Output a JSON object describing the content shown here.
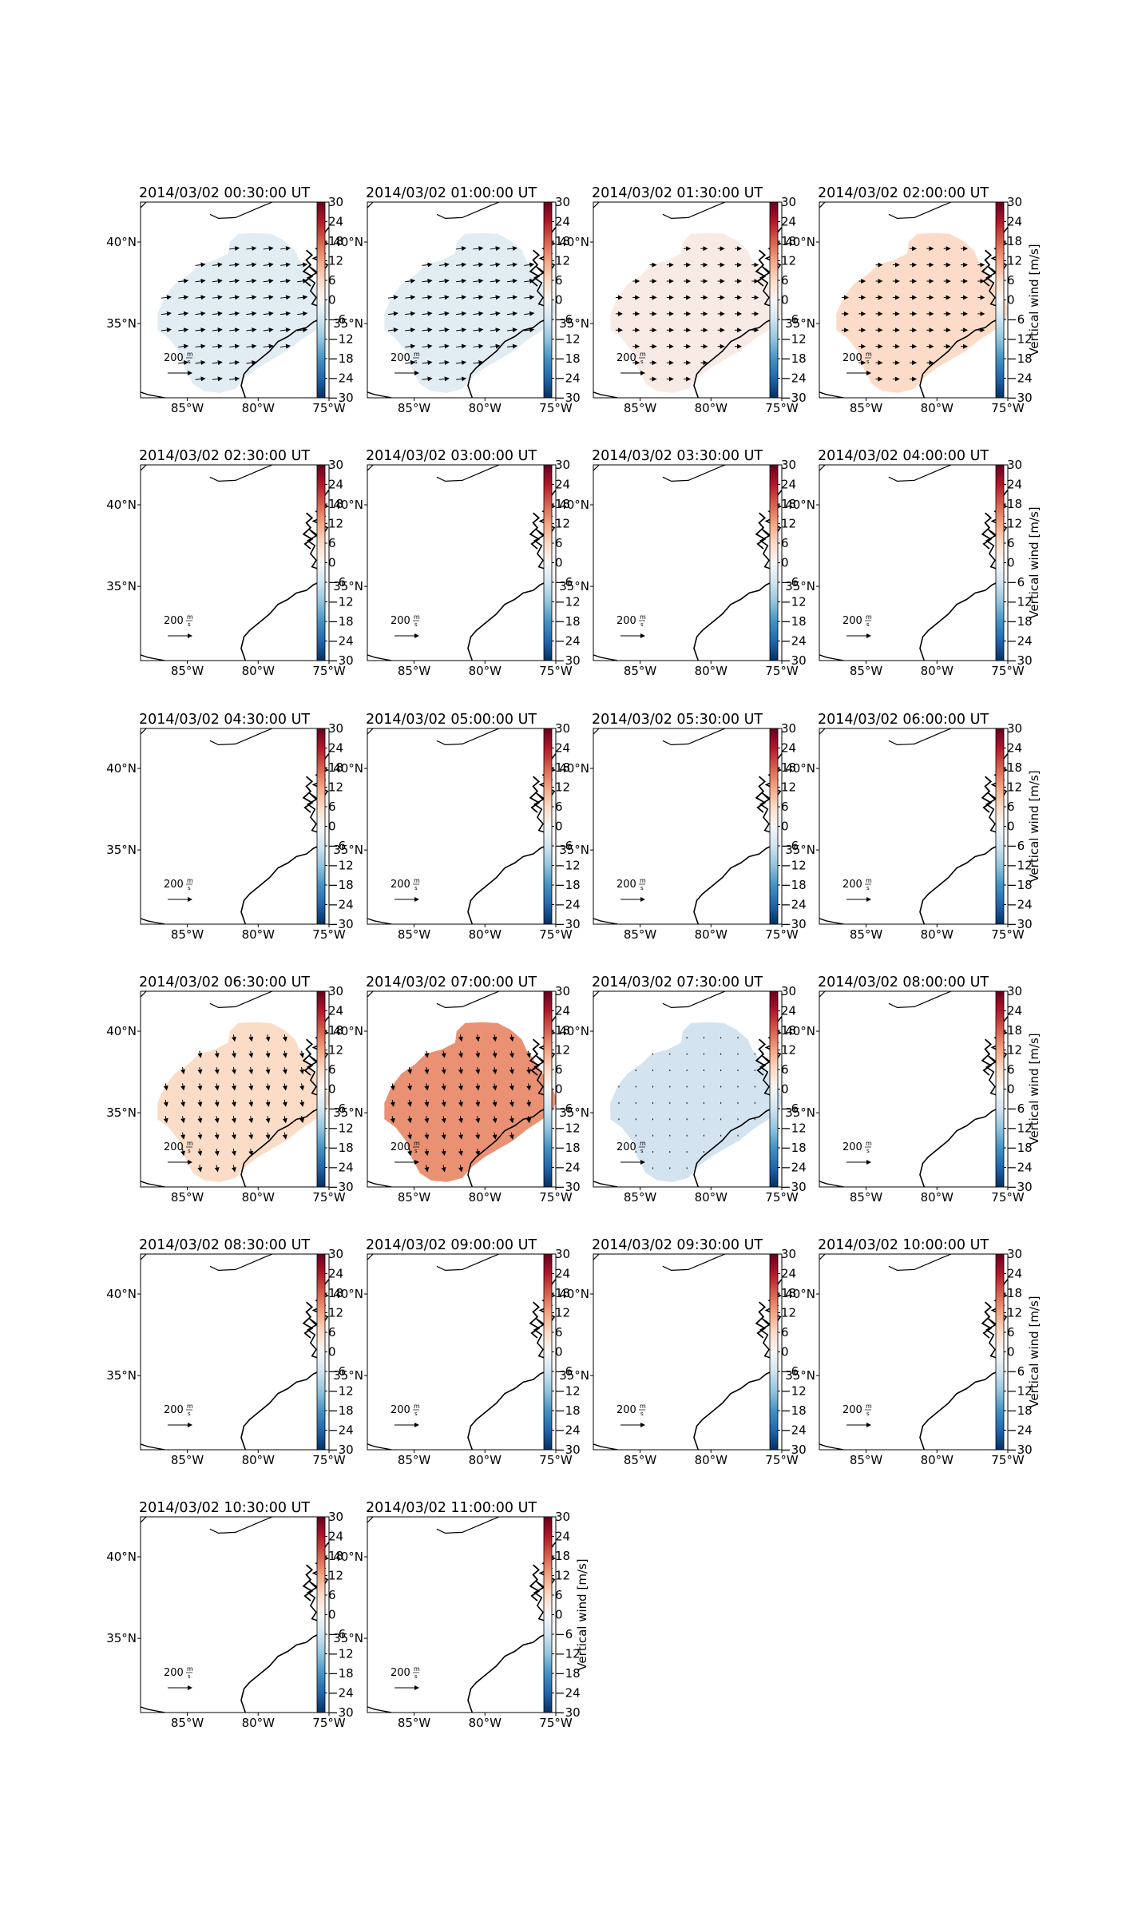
{
  "figure": {
    "colorbar_ticks": [
      "30",
      "24",
      "18",
      "12",
      "6",
      "0",
      "−6",
      "−12",
      "−18",
      "−24",
      "−30"
    ],
    "colorbar_label": "Vertical wind [m/s]",
    "lon_ticks": [
      "85°W",
      "80°W",
      "75°W"
    ],
    "lat_ticks": [
      "40°N",
      "35°N"
    ],
    "scale_label": "200",
    "scale_unit_num": "m",
    "scale_unit_den": "s",
    "cmap_stops": [
      "#053061",
      "#2166ac",
      "#4393c3",
      "#92c5de",
      "#d1e5f0",
      "#f7f7f7",
      "#fddbc7",
      "#f4a582",
      "#d6604d",
      "#b2182b",
      "#67001f"
    ],
    "land_color": "#000000",
    "panels": [
      {
        "title": "2014/03/02 00:30:00 UT",
        "fill": "#e2ecf3",
        "arrow": "east-long"
      },
      {
        "title": "2014/03/02 01:00:00 UT",
        "fill": "#e2ecf3",
        "arrow": "east-long"
      },
      {
        "title": "2014/03/02 01:30:00 UT",
        "fill": "#f8ebe6",
        "arrow": "east-short"
      },
      {
        "title": "2014/03/02 02:00:00 UT",
        "fill": "#fcdcc8",
        "arrow": "east-short"
      },
      {
        "title": "2014/03/02 02:30:00 UT",
        "fill": "",
        "arrow": "none"
      },
      {
        "title": "2014/03/02 03:00:00 UT",
        "fill": "",
        "arrow": "none"
      },
      {
        "title": "2014/03/02 03:30:00 UT",
        "fill": "",
        "arrow": "none"
      },
      {
        "title": "2014/03/02 04:00:00 UT",
        "fill": "",
        "arrow": "none"
      },
      {
        "title": "2014/03/02 04:30:00 UT",
        "fill": "",
        "arrow": "none"
      },
      {
        "title": "2014/03/02 05:00:00 UT",
        "fill": "",
        "arrow": "none"
      },
      {
        "title": "2014/03/02 05:30:00 UT",
        "fill": "",
        "arrow": "none"
      },
      {
        "title": "2014/03/02 06:00:00 UT",
        "fill": "",
        "arrow": "none"
      },
      {
        "title": "2014/03/02 06:30:00 UT",
        "fill": "#fbdcc6",
        "arrow": "south"
      },
      {
        "title": "2014/03/02 07:00:00 UT",
        "fill": "#ea9173",
        "arrow": "south"
      },
      {
        "title": "2014/03/02 07:30:00 UT",
        "fill": "#d3e4f0",
        "arrow": "dot"
      },
      {
        "title": "2014/03/02 08:00:00 UT",
        "fill": "",
        "arrow": "none"
      },
      {
        "title": "2014/03/02 08:30:00 UT",
        "fill": "",
        "arrow": "none"
      },
      {
        "title": "2014/03/02 09:00:00 UT",
        "fill": "",
        "arrow": "none"
      },
      {
        "title": "2014/03/02 09:30:00 UT",
        "fill": "",
        "arrow": "none"
      },
      {
        "title": "2014/03/02 10:00:00 UT",
        "fill": "",
        "arrow": "none"
      },
      {
        "title": "2014/03/02 10:30:00 UT",
        "fill": "",
        "arrow": "none"
      },
      {
        "title": "2014/03/02 11:00:00 UT",
        "fill": "",
        "arrow": "none"
      }
    ]
  }
}
